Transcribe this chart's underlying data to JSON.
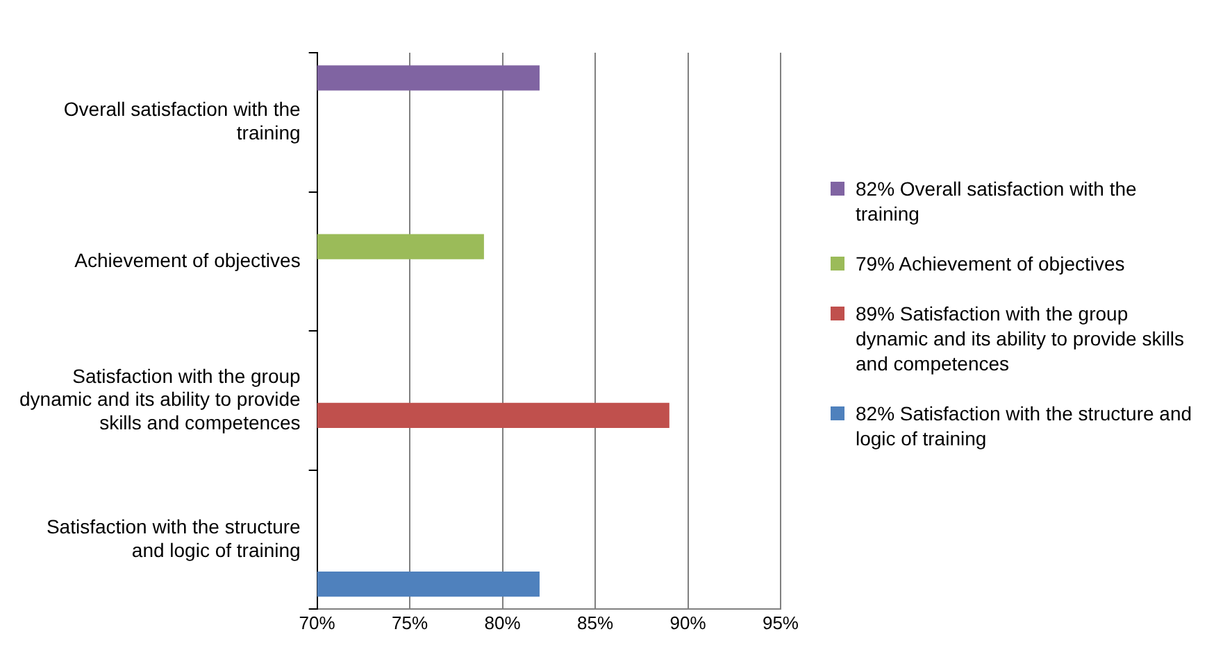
{
  "chart_data": {
    "type": "bar",
    "orientation": "horizontal",
    "categories": [
      "Overall satisfaction with the training",
      "Achievement of objectives",
      "Satisfaction with the group dynamic and its ability to provide skills and competences",
      "Satisfaction with the structure and logic of training"
    ],
    "series": [
      {
        "name": "82% Overall satisfaction with the training",
        "color": "#8064a2",
        "values": [
          82,
          null,
          null,
          null
        ]
      },
      {
        "name": "79% Achievement of objectives",
        "color": "#9bbb59",
        "values": [
          null,
          79,
          null,
          null
        ]
      },
      {
        "name": "89% Satisfaction with the group dynamic and its ability to provide skills and competences",
        "color": "#c0504d",
        "values": [
          null,
          null,
          89,
          null
        ]
      },
      {
        "name": "82% Satisfaction with the structure and logic of training",
        "color": "#4f81bd",
        "values": [
          null,
          null,
          null,
          82
        ]
      }
    ],
    "xlim": [
      70,
      95
    ],
    "xticks": [
      {
        "value": 70,
        "label": "70%"
      },
      {
        "value": 75,
        "label": "75%"
      },
      {
        "value": 80,
        "label": "80%"
      },
      {
        "value": 85,
        "label": "85%"
      },
      {
        "value": 90,
        "label": "90%"
      },
      {
        "value": 95,
        "label": "95%"
      }
    ],
    "grid": "x",
    "legend": "right"
  }
}
